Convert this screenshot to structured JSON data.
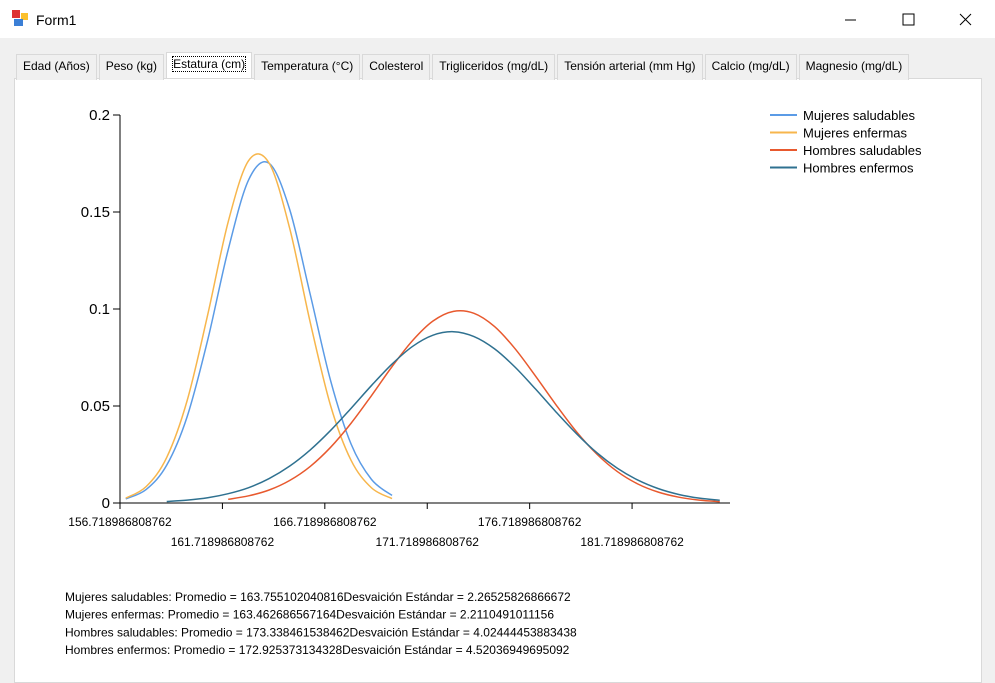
{
  "window": {
    "title": "Form1"
  },
  "tabs": [
    "Edad (Años)",
    "Peso (kg)",
    "Estatura (cm)",
    "Temperatura (°C)",
    "Colesterol",
    "Trigliceridos (mg/dL)",
    "Tensión arterial (mm Hg)",
    "Calcio (mg/dL)",
    "Magnesio (mg/dL)"
  ],
  "selected_tab": 2,
  "chart_data": {
    "type": "line",
    "x": [
      157,
      158,
      159,
      160,
      161,
      162,
      163,
      164,
      165,
      166,
      167,
      168,
      169,
      170,
      171,
      172,
      173,
      174,
      175,
      176,
      177,
      178,
      179,
      180,
      181,
      182,
      183,
      184,
      185,
      186
    ],
    "series": [
      {
        "name": "Mujeres saludables",
        "color": "#5b9be6",
        "values": [
          0.0021,
          0.007,
          0.0195,
          0.0446,
          0.084,
          0.1305,
          0.1666,
          0.1751,
          0.1514,
          0.1078,
          0.0631,
          0.0304,
          0.0121,
          0.0039,
          null,
          null,
          null,
          null,
          null,
          null,
          null,
          null,
          null,
          null,
          null,
          null,
          null,
          null,
          null,
          null
        ]
      },
      {
        "name": "Mujeres enfermas",
        "color": "#f7b64c",
        "values": [
          0.0025,
          0.0085,
          0.0235,
          0.0529,
          0.097,
          0.1449,
          0.1765,
          0.1752,
          0.1417,
          0.0934,
          0.0502,
          0.022,
          0.0078,
          0.0023,
          null,
          null,
          null,
          null,
          null,
          null,
          null,
          null,
          null,
          null,
          null,
          null,
          null,
          null,
          null,
          null
        ]
      },
      {
        "name": "Hombres saludables",
        "color": "#e8592e",
        "values": [
          null,
          null,
          null,
          null,
          null,
          0.0019,
          0.0037,
          0.0067,
          0.0116,
          0.0188,
          0.0287,
          0.0411,
          0.0554,
          0.0703,
          0.0837,
          0.0938,
          0.0988,
          0.0978,
          0.091,
          0.0796,
          0.0655,
          0.0507,
          0.0368,
          0.0252,
          0.0162,
          0.0098,
          0.0056,
          0.003,
          0.0015,
          0.0007
        ]
      },
      {
        "name": "Hombres enfermos",
        "color": "#2f7190",
        "values": [
          null,
          null,
          0.0008,
          0.0015,
          0.0027,
          0.0048,
          0.0079,
          0.0126,
          0.019,
          0.0273,
          0.0374,
          0.0488,
          0.0606,
          0.0716,
          0.0807,
          0.0865,
          0.0883,
          0.0858,
          0.0795,
          0.0701,
          0.0588,
          0.047,
          0.0358,
          0.0259,
          0.0179,
          0.0118,
          0.0074,
          0.0044,
          0.0025,
          0.0014
        ]
      }
    ],
    "xlim": [
      156.718986808762,
      186.5
    ],
    "xticks": [
      156.718986808762,
      161.718986808762,
      166.718986808762,
      171.718986808762,
      176.718986808762,
      181.718986808762
    ],
    "ylim": [
      0,
      0.2
    ],
    "yticks": [
      0,
      0.05,
      0.1,
      0.15,
      0.2
    ],
    "legend": "top-right"
  },
  "stats": [
    "Mujeres saludables: Promedio = 163.755102040816Desvaición Estándar = 2.26525826866672",
    "Mujeres enfermas: Promedio = 163.462686567164Desvaición Estándar = 2.2110491011156",
    "Hombres saludables: Promedio = 173.338461538462Desvaición Estándar = 4.02444453883438",
    "Hombres enfermos: Promedio = 172.925373134328Desvaición Estándar = 4.52036949695092"
  ]
}
